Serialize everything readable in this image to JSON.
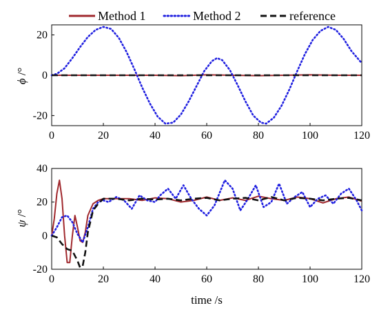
{
  "chart_data": [
    {
      "type": "line",
      "title": "",
      "xlabel": "",
      "ylabel_symbol": "ϕ",
      "ylabel_unit": " /°",
      "xlim": [
        0,
        120
      ],
      "ylim": [
        -25,
        25
      ],
      "xticks": [
        0,
        20,
        40,
        60,
        80,
        100,
        120
      ],
      "yticks": [
        -20,
        0,
        20
      ],
      "grid": false,
      "legend": "top",
      "series": [
        {
          "name": "Method 1",
          "color": "#a0282d",
          "style": "solid",
          "x": [
            0,
            10,
            20,
            30,
            40,
            50,
            60,
            70,
            80,
            90,
            100,
            110,
            120
          ],
          "y": [
            0,
            0,
            0,
            0,
            0,
            -0.2,
            0.2,
            0,
            -0.2,
            0,
            0.2,
            0,
            0
          ]
        },
        {
          "name": "Method 2",
          "color": "#1f1fe0",
          "style": "dotted",
          "x": [
            0,
            2,
            5,
            8,
            11,
            14,
            17,
            20,
            23,
            26,
            29,
            32,
            35,
            38,
            41,
            44,
            47,
            50,
            53,
            56,
            59,
            62,
            64,
            66,
            69,
            72,
            75,
            78,
            81,
            83,
            86,
            89,
            92,
            95,
            98,
            101,
            104,
            107,
            110,
            113,
            116,
            120
          ],
          "y": [
            0,
            0.7,
            3.5,
            8.5,
            14,
            19,
            22.5,
            24,
            23,
            18.5,
            11.5,
            3,
            -6,
            -14,
            -20.5,
            -24,
            -23.5,
            -19.5,
            -13,
            -5.5,
            2,
            7,
            8.5,
            7.5,
            2.5,
            -5,
            -13,
            -20,
            -23.5,
            -24,
            -21,
            -15,
            -7,
            2,
            10.5,
            17.5,
            22,
            24,
            22.5,
            18,
            12,
            6
          ]
        },
        {
          "name": "reference",
          "color": "#111111",
          "style": "dashed",
          "x": [
            0,
            20,
            40,
            60,
            80,
            100,
            120
          ],
          "y": [
            0,
            0,
            0,
            0,
            0,
            0,
            0
          ]
        }
      ]
    },
    {
      "type": "line",
      "title": "",
      "xlabel": "time /s",
      "ylabel_symbol": "ψ",
      "ylabel_unit": " /°",
      "xlim": [
        0,
        120
      ],
      "ylim": [
        -20,
        40
      ],
      "xticks": [
        0,
        20,
        40,
        60,
        80,
        100,
        120
      ],
      "yticks": [
        -20,
        0,
        20,
        40
      ],
      "grid": false,
      "series": [
        {
          "name": "Method 1",
          "color": "#a0282d",
          "style": "solid",
          "x": [
            0,
            1,
            2,
            3,
            4,
            5,
            6,
            7,
            8,
            9,
            10,
            11,
            12,
            13,
            14,
            16,
            18,
            20,
            25,
            30,
            35,
            40,
            45,
            50,
            55,
            60,
            65,
            70,
            75,
            80,
            85,
            90,
            95,
            100,
            105,
            110,
            115,
            120
          ],
          "y": [
            0,
            10,
            25,
            33,
            22,
            0,
            -16,
            -16,
            0,
            12,
            5,
            -3,
            -4,
            2,
            12,
            19,
            21,
            22,
            22,
            22,
            21,
            22.5,
            22,
            20,
            21,
            23,
            21,
            22.5,
            21,
            23.5,
            22,
            21,
            23,
            22,
            19.5,
            22,
            23,
            20.5
          ]
        },
        {
          "name": "Method 2",
          "color": "#1f1fe0",
          "style": "dotted",
          "x": [
            0,
            2,
            4,
            6,
            8,
            10,
            12,
            14,
            16,
            18,
            20,
            22,
            25,
            28,
            31,
            34,
            37,
            40,
            42,
            45,
            48,
            51,
            54,
            57,
            60,
            63,
            67,
            70,
            73,
            76,
            79,
            82,
            85,
            88,
            91,
            94,
            97,
            100,
            103,
            106,
            109,
            112,
            115,
            118,
            120
          ],
          "y": [
            0,
            5,
            11,
            12,
            8,
            1,
            -4,
            5,
            16,
            20,
            21,
            20,
            23,
            21,
            16,
            24,
            21,
            20,
            24,
            28,
            22,
            30,
            22,
            16,
            12,
            18,
            33,
            28,
            15,
            22,
            30,
            17,
            20,
            31,
            19,
            23,
            26,
            17,
            22,
            24,
            19,
            25,
            28,
            21,
            15
          ]
        },
        {
          "name": "reference",
          "color": "#111111",
          "style": "dashed",
          "x": [
            0,
            2,
            4,
            6,
            8,
            10,
            11,
            12,
            13,
            14,
            16,
            18,
            20,
            25,
            30,
            35,
            40,
            45,
            50,
            55,
            60,
            65,
            70,
            75,
            80,
            85,
            90,
            95,
            100,
            105,
            110,
            115,
            120
          ],
          "y": [
            0,
            -1,
            -5,
            -8,
            -9,
            -15,
            -19,
            -18,
            -10,
            2,
            15,
            19,
            22,
            22,
            21,
            22,
            21.5,
            22,
            21,
            22,
            22.5,
            21,
            22,
            22.5,
            21,
            23,
            21,
            22.5,
            22,
            21,
            22,
            22.5,
            21
          ]
        }
      ]
    }
  ]
}
